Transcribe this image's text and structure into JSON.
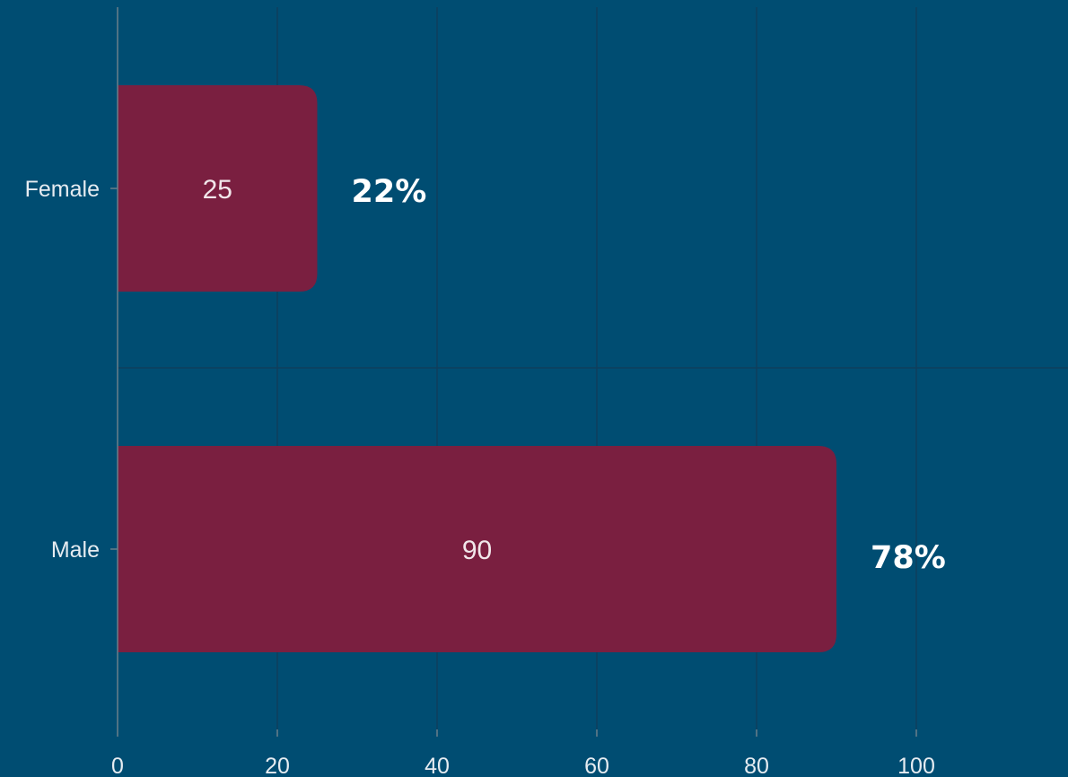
{
  "colors": {
    "background": "#004d72",
    "bar": "#7a1f40",
    "grid": "#0f3f5c",
    "axis": "#6b7f8a",
    "text": "#e6ecf1"
  },
  "chart_data": {
    "type": "bar",
    "orientation": "horizontal",
    "categories": [
      "Female",
      "Male"
    ],
    "values": [
      25,
      90
    ],
    "data_labels": [
      "25",
      "90"
    ],
    "percent_labels": [
      "22%",
      "78%"
    ],
    "xlim": [
      0,
      120
    ],
    "xticks": [
      0,
      20,
      40,
      60,
      80,
      100
    ],
    "xtick_labels": [
      "0",
      "20",
      "40",
      "60",
      "80",
      "100"
    ],
    "grid": true,
    "title": "",
    "xlabel": "",
    "ylabel": ""
  }
}
